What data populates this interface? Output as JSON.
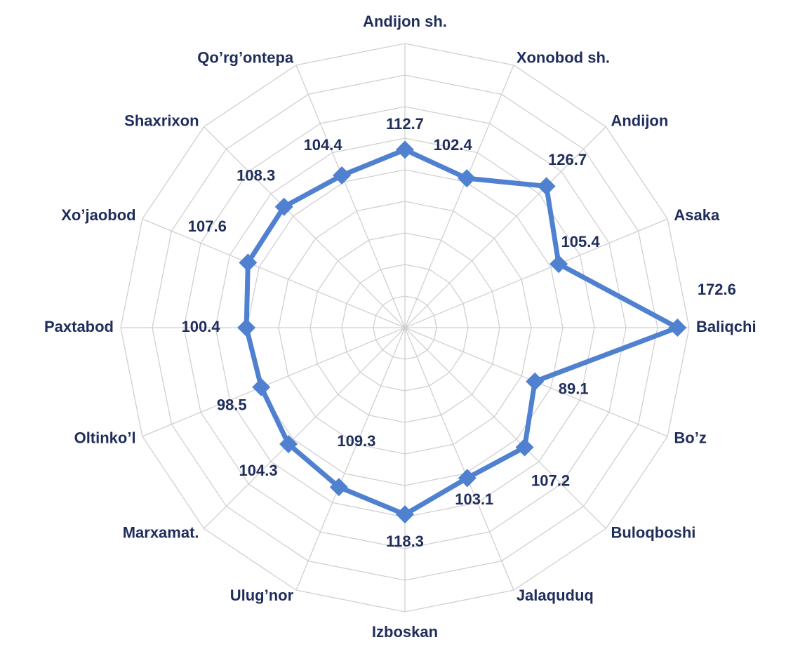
{
  "chart_data": {
    "type": "radar",
    "categories": [
      "Andijon sh.",
      "Xonobod sh.",
      "Andijon",
      "Asaka",
      "Baliqchi",
      "Bo’z",
      "Buloqboshi",
      "Jalaquduq",
      "Izboskan",
      "Ulug’nor",
      "Marxamat.",
      "Oltinko’l",
      "Paxtabod",
      "Xo’jaobod",
      "Shaxrixon",
      "Qo’rg’ontepa"
    ],
    "values": [
      112.7,
      102.4,
      126.7,
      105.4,
      172.6,
      89.1,
      107.2,
      103.1,
      118.3,
      109.3,
      104.3,
      98.5,
      100.4,
      107.6,
      108.3,
      104.4
    ],
    "color": "#4f81d0",
    "ylim": [
      0,
      180
    ],
    "yticks": [
      0,
      20,
      40,
      60,
      80,
      100,
      120,
      140,
      160,
      180
    ],
    "grid": true
  }
}
